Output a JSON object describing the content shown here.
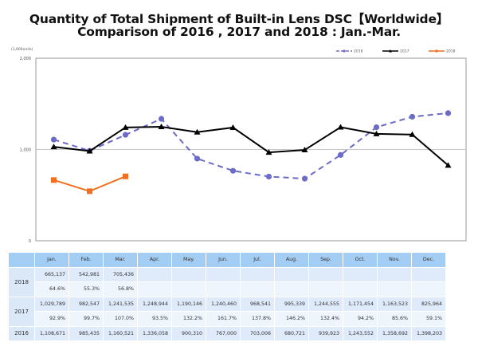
{
  "chart_data": {
    "type": "line",
    "title": "Quantity of Total Shipment of Built-in Lens DSC【Worldwide】",
    "subtitle": "Comparison of 2016 , 2017 and 2018 : Jan.-Mar.",
    "unit_label": "(1,000units)",
    "xlabel": "",
    "ylabel": "",
    "ylim": [
      0,
      2000
    ],
    "y_ticks": [
      "0",
      "1,000",
      "2,000"
    ],
    "y_tick_values": [
      0,
      1000,
      2000
    ],
    "grid": "horizontal at 1,000",
    "legend_position": "top-right",
    "categories": [
      "Jan.",
      "Feb.",
      "Mar.",
      "Apr.",
      "May.",
      "Jun.",
      "Jul.",
      "Aug.",
      "Sep.",
      "Oct.",
      "Nov.",
      "Dec."
    ],
    "series": [
      {
        "name": "2016",
        "color": "#6b6bc8",
        "style": "dashed",
        "marker": "circle",
        "values": [
          1108.671,
          985.435,
          1160.521,
          1336.058,
          900.31,
          767.0,
          703.006,
          680.721,
          939.923,
          1243.552,
          1358.692,
          1398.203
        ]
      },
      {
        "name": "2017",
        "color": "#000000",
        "style": "solid",
        "marker": "triangle",
        "values": [
          1029.789,
          982.547,
          1241.535,
          1248.944,
          1190.146,
          1240.46,
          968.541,
          995.339,
          1244.555,
          1171.454,
          1163.523,
          825.964
        ]
      },
      {
        "name": "2018",
        "color": "#f07020",
        "style": "solid",
        "marker": "square",
        "values": [
          665.137,
          542.981,
          705.436
        ]
      }
    ]
  },
  "table": {
    "header": [
      "",
      "Jan.",
      "Feb.",
      "Mar.",
      "Apr.",
      "May.",
      "Jun.",
      "Jul.",
      "Aug.",
      "Sep.",
      "Oct.",
      "Nov.",
      "Dec."
    ],
    "rows": [
      {
        "year": "2018",
        "units": [
          "665,137",
          "542,981",
          "705,436",
          "",
          "",
          "",
          "",
          "",
          "",
          "",
          "",
          ""
        ],
        "ratio": [
          "64.6%",
          "55.3%",
          "56.8%",
          "",
          "",
          "",
          "",
          "",
          "",
          "",
          "",
          ""
        ]
      },
      {
        "year": "2017",
        "units": [
          "1,029,789",
          "982,547",
          "1,241,535",
          "1,248,944",
          "1,190,146",
          "1,240,460",
          "968,541",
          "995,339",
          "1,244,555",
          "1,171,454",
          "1,163,523",
          "825,964"
        ],
        "ratio": [
          "92.9%",
          "99.7%",
          "107.0%",
          "93.5%",
          "132.2%",
          "161.7%",
          "137.8%",
          "146.2%",
          "132.4%",
          "94.2%",
          "85.6%",
          "59.1%"
        ]
      },
      {
        "year": "2016",
        "units": [
          "1,108,671",
          "985,435",
          "1,160,521",
          "1,336,058",
          "900,310",
          "767,000",
          "703,006",
          "680,721",
          "939,923",
          "1,243,552",
          "1,358,692",
          "1,398,203"
        ]
      }
    ]
  }
}
